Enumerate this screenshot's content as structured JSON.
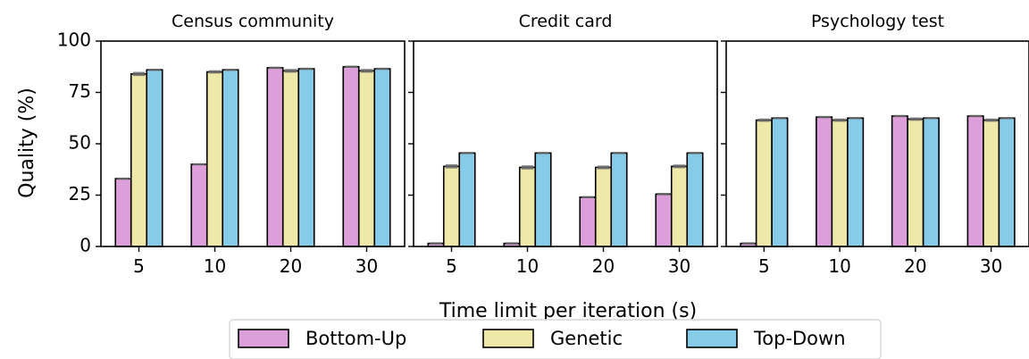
{
  "chart_data": [
    {
      "type": "bar",
      "title": "Census community",
      "categories": [
        "5",
        "10",
        "20",
        "30"
      ],
      "series": [
        {
          "name": "Bottom-Up",
          "values": [
            33,
            40,
            87,
            87.5
          ],
          "errors": [
            0.3,
            0.3,
            0.3,
            0.3
          ]
        },
        {
          "name": "Genetic",
          "values": [
            84,
            85,
            85.5,
            85.5
          ],
          "errors": [
            1.0,
            0.8,
            0.9,
            0.9
          ]
        },
        {
          "name": "Top-Down",
          "values": [
            86,
            86,
            86.5,
            86.5
          ],
          "errors": [
            0.3,
            0.3,
            0.3,
            0.3
          ]
        }
      ],
      "ylim": [
        0,
        100
      ],
      "yticks": [
        0,
        25,
        50,
        75,
        100
      ]
    },
    {
      "type": "bar",
      "title": "Credit card",
      "categories": [
        "5",
        "10",
        "20",
        "30"
      ],
      "series": [
        {
          "name": "Bottom-Up",
          "values": [
            1.5,
            1.5,
            24,
            25.5
          ],
          "errors": [
            0.3,
            0.3,
            0.3,
            0.6
          ]
        },
        {
          "name": "Genetic",
          "values": [
            39,
            38.5,
            38.5,
            39
          ],
          "errors": [
            1.0,
            1.0,
            0.9,
            0.9
          ]
        },
        {
          "name": "Top-Down",
          "values": [
            45.5,
            45.5,
            45.5,
            45.5
          ],
          "errors": [
            0.3,
            0.3,
            0.3,
            0.3
          ]
        }
      ],
      "ylim": [
        0,
        100
      ],
      "yticks": [
        0,
        25,
        50,
        75,
        100
      ]
    },
    {
      "type": "bar",
      "title": "Psychology test",
      "categories": [
        "5",
        "10",
        "20",
        "30"
      ],
      "series": [
        {
          "name": "Bottom-Up",
          "values": [
            1.5,
            63,
            63.5,
            63.5
          ],
          "errors": [
            0.3,
            0.3,
            0.3,
            0.3
          ]
        },
        {
          "name": "Genetic",
          "values": [
            61.5,
            61.5,
            62,
            61.5
          ],
          "errors": [
            0.8,
            0.8,
            0.8,
            0.8
          ]
        },
        {
          "name": "Top-Down",
          "values": [
            62.5,
            62.5,
            62.5,
            62.5
          ],
          "errors": [
            0.3,
            0.3,
            0.3,
            0.3
          ]
        }
      ],
      "ylim": [
        0,
        100
      ],
      "yticks": [
        0,
        25,
        50,
        75,
        100
      ]
    }
  ],
  "ylabel": "Quality (%)",
  "xlabel": "Time limit per iteration (s)",
  "legend": {
    "placement": "bottom-center",
    "entries": [
      {
        "name": "Bottom-Up",
        "color": "#dd9fd9"
      },
      {
        "name": "Genetic",
        "color": "#efe9a9"
      },
      {
        "name": "Top-Down",
        "color": "#86cbe8"
      }
    ]
  },
  "colors": {
    "bar_edge": "#000000",
    "error_bar": "#6b6b6b"
  }
}
